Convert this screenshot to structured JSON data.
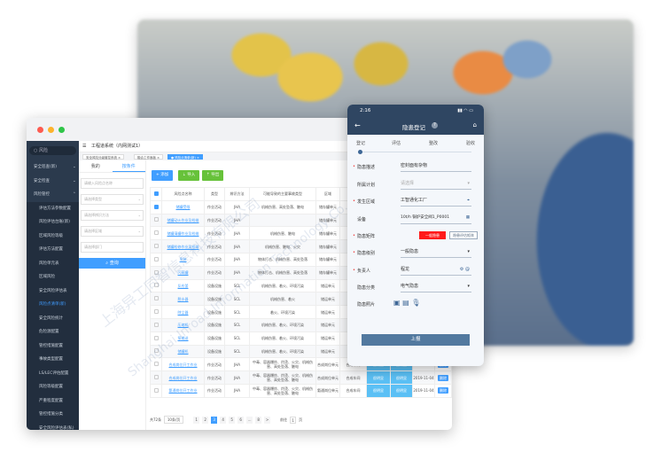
{
  "watermark": {
    "cn": "上海异工同智信息科技有限公司",
    "en": "Shanghai Inroad Information Technology Co., Ltd."
  },
  "sidebar": {
    "search": "风险",
    "items": [
      {
        "label": "安全巡查(新)",
        "level": 1
      },
      {
        "label": "安全检查",
        "level": 1
      },
      {
        "label": "风险管控",
        "level": 1
      },
      {
        "label": "评估方法参数配置",
        "level": 2
      },
      {
        "label": "风险评估台账(新)",
        "level": 2
      },
      {
        "label": "区域风险等级",
        "level": 2
      },
      {
        "label": "评估方法配置",
        "level": 2
      },
      {
        "label": "风险单元表",
        "level": 2
      },
      {
        "label": "区域风险",
        "level": 2
      },
      {
        "label": "安全风险评估表",
        "level": 2
      },
      {
        "label": "风险点清单(新)",
        "level": 2,
        "active": true
      },
      {
        "label": "安全风险统计",
        "level": 2
      },
      {
        "label": "危险源配置",
        "level": 2
      },
      {
        "label": "管控措施配置",
        "level": 2
      },
      {
        "label": "事故类型配置",
        "level": 2
      },
      {
        "label": "LS/LEC评估配置",
        "level": 2
      },
      {
        "label": "风险等级配置",
        "level": 2
      },
      {
        "label": "严重程度配置",
        "level": 2
      },
      {
        "label": "管控措施分类",
        "level": 2
      },
      {
        "label": "安全风险评估表(私)",
        "level": 2
      }
    ]
  },
  "header": {
    "title": "工程道系统（内网测试1）",
    "tabs": [
      "安全风险分级管控系统",
      "融合工作面板",
      "风险点清单(新)"
    ]
  },
  "filter": {
    "tabs": [
      "我的",
      "按条件"
    ],
    "inputs": [
      "请输入风险点名称",
      "请选择类型",
      "请选择辨识方法",
      "请选择区域",
      "请选择部门"
    ],
    "query": "查询"
  },
  "toolbar": {
    "add": "+ 添加",
    "import": "导入",
    "export": "导出"
  },
  "table": {
    "headers": [
      "风险点名称",
      "类型",
      "辨识方法",
      "可能导致的主要事故类型",
      "区域"
    ],
    "rows": [
      [
        "储罐受限",
        "作业活动",
        "JHA",
        "机械伤害、高处坠落、触电",
        "储存罐单元"
      ],
      [
        "储罐动火作业及检维",
        "作业活动",
        "JHA",
        "",
        "储存罐单元"
      ],
      [
        "储罐清罐作业及检维",
        "作业活动",
        "JHA",
        "机械伤害、触电",
        "储存罐单元"
      ],
      [
        "储罐检修作业及检维",
        "作业活动",
        "JHA",
        "机械伤害、触电、火灾",
        "储存罐单元"
      ],
      [
        "吊装",
        "作业活动",
        "JHA",
        "物体打击、机械伤害、高处坠落",
        "储存罐单元"
      ],
      [
        "闪蒸罐",
        "作业活动",
        "JHA",
        "物体打击、机械伤害、高处坠落",
        "储存罐单元"
      ],
      [
        "反应釜",
        "设备设施",
        "SCL",
        "机械伤害、着火、环境污染",
        "储运单元"
      ],
      [
        "脱水器",
        "设备设施",
        "SCL",
        "机械伤害、着火",
        "储运单元"
      ],
      [
        "除尘器",
        "设备设施",
        "SCL",
        "着火、环境污染",
        "储运单元"
      ],
      [
        "压缩机",
        "设备设施",
        "SCL",
        "机械伤害、着火、环境污染",
        "储运单元"
      ],
      [
        "泵输送",
        "设备设施",
        "SCL",
        "机械伤害、着火、环境污染",
        "储运单元"
      ],
      [
        "储罐机",
        "设备设施",
        "SCL",
        "机械伤害、着火、环境污染",
        "储运单元"
      ],
      [
        "合成岗位开工作业",
        "作业活动",
        "JHA",
        "中毒、容器爆炸、灼烫、火灾、机械伤害、高处坠落、触电",
        "合成岗位单元"
      ],
      [
        "合成岗位开工作业",
        "作业活动",
        "JHA",
        "中毒、容器爆炸、灼烫、火灾、机械伤害、高处坠落、触电",
        "合成岗位单元"
      ],
      [
        "氨通岗位开工作业",
        "作业活动",
        "JHA",
        "中毒、容器爆炸、灼烫、火灾、机械伤害、高处坠落、触电",
        "氨通岗位单元"
      ]
    ],
    "extra_rows": [
      [
        "合成车间",
        "很明显",
        "很明显",
        "2020-11-04",
        "删除"
      ],
      [
        "合成车间",
        "很明显",
        "很明显",
        "2019-11-04",
        "删除"
      ],
      [
        "合成车间",
        "很明显",
        "很明显",
        "2019-11-04",
        "删除"
      ]
    ]
  },
  "pagination": {
    "total": "共72条",
    "size": "10条/页",
    "pages": [
      "1",
      "2",
      "3",
      "4",
      "5",
      "6",
      "...",
      "8",
      ">"
    ],
    "current": "3",
    "goto": "前往",
    "goto_value": "1",
    "page_unit": "页"
  },
  "phone": {
    "time": "2:16",
    "title": "隐患登记",
    "help": "?",
    "steps": [
      "登记",
      "评估",
      "整改",
      "验收"
    ],
    "fields": {
      "desc_label": "隐患描述",
      "desc": "密封面有杂物",
      "plan_label": "所属计划",
      "plan_ph": "请选择",
      "area_label": "发生区域",
      "area": "工智通化工厂",
      "equip_label": "设备",
      "equip": "10t/h 锅炉安全阀1_P0001",
      "matrix_label": "隐患矩阵",
      "matrix_val": "一般隐患",
      "matrix_btn": "隐患评估矩阵",
      "level_label": "隐患级别",
      "level": "一般隐患",
      "owner_label": "负责人",
      "owner": "程龙",
      "cat_label": "隐患分类",
      "cat": "电气隐患",
      "photo_label": "隐患照片"
    },
    "submit": "上报",
    "colors": {
      "header": "#2f4662",
      "danger": "#ff1a1a",
      "submit": "#52799f"
    }
  }
}
